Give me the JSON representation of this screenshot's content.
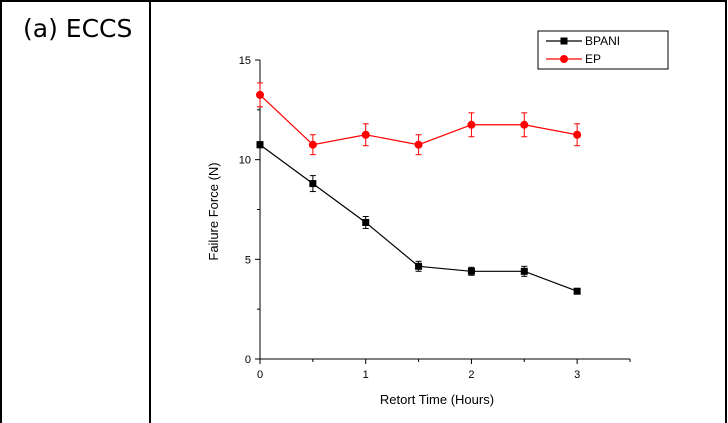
{
  "panel_label": "(a) ECCS",
  "chart_data": {
    "type": "line",
    "title": "",
    "xlabel": "Retort Time (Hours)",
    "ylabel": "Failure Force (N)",
    "xlim": [
      0,
      3.5
    ],
    "ylim": [
      0,
      15
    ],
    "x_ticks": [
      0,
      1,
      2,
      3
    ],
    "y_ticks": [
      0,
      5,
      10,
      15
    ],
    "grid": false,
    "legend_position": "top-right",
    "series": [
      {
        "name": "BPANI",
        "color": "#000000",
        "marker": "square",
        "x": [
          0,
          0.5,
          1,
          1.5,
          2,
          2.5,
          3
        ],
        "y": [
          10.75,
          8.8,
          6.85,
          4.65,
          4.4,
          4.4,
          3.4
        ],
        "error": [
          0.15,
          0.4,
          0.3,
          0.25,
          0.2,
          0.25,
          0.1
        ]
      },
      {
        "name": "EP",
        "color": "#ff0000",
        "marker": "circle",
        "x": [
          0,
          0.5,
          1,
          1.5,
          2,
          2.5,
          3
        ],
        "y": [
          13.25,
          10.75,
          11.25,
          10.75,
          11.75,
          11.75,
          11.25
        ],
        "error": [
          0.6,
          0.5,
          0.55,
          0.5,
          0.6,
          0.6,
          0.55
        ]
      }
    ]
  }
}
